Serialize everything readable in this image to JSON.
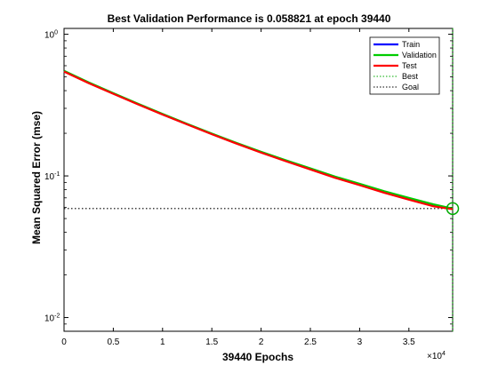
{
  "chart_data": {
    "type": "line",
    "title": "Best Validation Performance is 0.058821 at epoch 39440",
    "xlabel": "39440 Epochs",
    "ylabel": "Mean Squared Error  (mse)",
    "x_exponent_label": "×10",
    "x_exponent_power": "4",
    "xlim": [
      0,
      39440
    ],
    "ylim": [
      0.008,
      1.1
    ],
    "yscale": "log",
    "x_ticks": [
      {
        "value": 0,
        "label": "0"
      },
      {
        "value": 5000,
        "label": "0.5"
      },
      {
        "value": 10000,
        "label": "1"
      },
      {
        "value": 15000,
        "label": "1.5"
      },
      {
        "value": 20000,
        "label": "2"
      },
      {
        "value": 25000,
        "label": "2.5"
      },
      {
        "value": 30000,
        "label": "3"
      },
      {
        "value": 35000,
        "label": "3.5"
      }
    ],
    "y_ticks": [
      {
        "value": 1,
        "base": "10",
        "exp": "0"
      },
      {
        "value": 0.1,
        "base": "10",
        "exp": "-1"
      },
      {
        "value": 0.01,
        "base": "10",
        "exp": "-2"
      }
    ],
    "grid": false,
    "legend_position": "top-right",
    "series": [
      {
        "name": "Train",
        "color": "#0000ff",
        "style": "solid",
        "x": [
          0,
          2500,
          5000,
          7500,
          10000,
          12500,
          15000,
          17500,
          20000,
          22500,
          25000,
          27500,
          30000,
          32500,
          35000,
          37500,
          39440
        ],
        "y": [
          0.55,
          0.455,
          0.382,
          0.322,
          0.272,
          0.232,
          0.198,
          0.17,
          0.147,
          0.128,
          0.112,
          0.098,
          0.087,
          0.077,
          0.069,
          0.062,
          0.0585
        ]
      },
      {
        "name": "Validation",
        "color": "#00cc00",
        "style": "solid",
        "x": [
          0,
          2500,
          5000,
          7500,
          10000,
          12500,
          15000,
          17500,
          20000,
          22500,
          25000,
          27500,
          30000,
          32500,
          35000,
          37500,
          39440
        ],
        "y": [
          0.552,
          0.457,
          0.384,
          0.324,
          0.274,
          0.233,
          0.199,
          0.171,
          0.148,
          0.129,
          0.113,
          0.099,
          0.088,
          0.078,
          0.07,
          0.063,
          0.0588
        ]
      },
      {
        "name": "Test",
        "color": "#ff0000",
        "style": "solid",
        "x": [
          0,
          2500,
          5000,
          7500,
          10000,
          12500,
          15000,
          17500,
          20000,
          22500,
          25000,
          27500,
          30000,
          32500,
          35000,
          37500,
          39440
        ],
        "y": [
          0.545,
          0.452,
          0.38,
          0.32,
          0.271,
          0.231,
          0.197,
          0.169,
          0.146,
          0.127,
          0.111,
          0.097,
          0.086,
          0.076,
          0.068,
          0.061,
          0.0582
        ]
      },
      {
        "name": "Best",
        "color": "#00aa00",
        "style": "dotted",
        "kind": "vertical",
        "x": 39440
      },
      {
        "name": "Goal",
        "color": "#000000",
        "style": "dotted",
        "kind": "horizontal",
        "y": 0.058821
      }
    ],
    "best_marker": {
      "x": 39440,
      "y": 0.058821,
      "color": "#00aa00"
    }
  }
}
